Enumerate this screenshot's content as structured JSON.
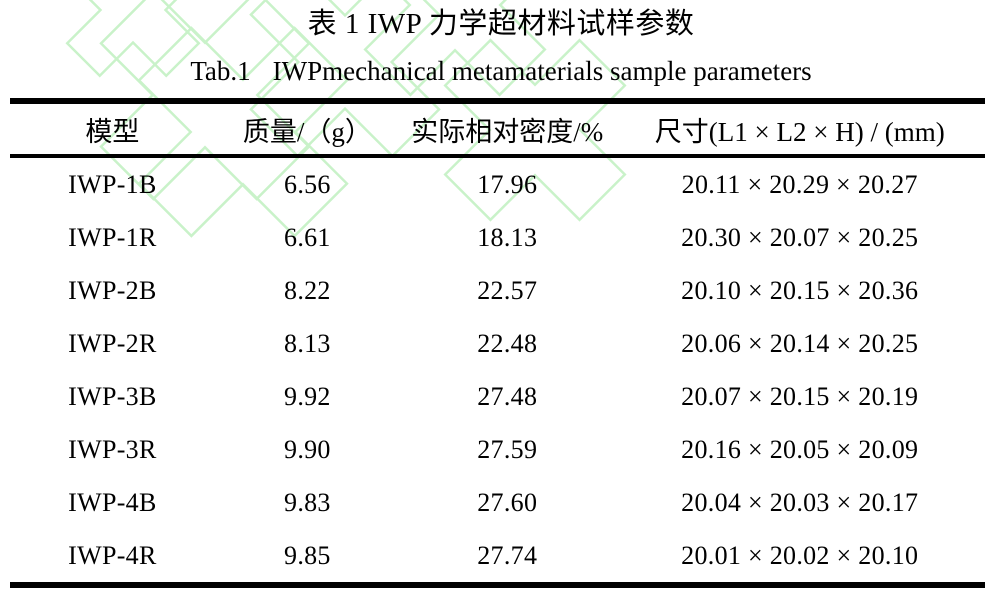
{
  "page": {
    "title_zh": "表 1 IWP 力学超材料试样参数",
    "title_en_label": "Tab.1",
    "title_en_text": "IWPmechanical metamaterials sample parameters",
    "background_color": "#ffffff",
    "text_color": "#000000"
  },
  "watermark": {
    "name": "light-green-rotated-cross-pattern",
    "color": "#c9f2c9"
  },
  "table": {
    "columns": [
      "模型",
      "质量/（g）",
      "实际相对密度/%",
      "尺寸(L1 × L2 × H) / (mm)"
    ],
    "rows": [
      {
        "model": "IWP-1B",
        "mass": "6.56",
        "relative_density": "17.96",
        "dimensions": "20.11 × 20.29 × 20.27"
      },
      {
        "model": "IWP-1R",
        "mass": "6.61",
        "relative_density": "18.13",
        "dimensions": "20.30 × 20.07 × 20.25"
      },
      {
        "model": "IWP-2B",
        "mass": "8.22",
        "relative_density": "22.57",
        "dimensions": "20.10 × 20.15 × 20.36"
      },
      {
        "model": "IWP-2R",
        "mass": "8.13",
        "relative_density": "22.48",
        "dimensions": "20.06 × 20.14 × 20.25"
      },
      {
        "model": "IWP-3B",
        "mass": "9.92",
        "relative_density": "27.48",
        "dimensions": "20.07 × 20.15 × 20.19"
      },
      {
        "model": "IWP-3R",
        "mass": "9.90",
        "relative_density": "27.59",
        "dimensions": "20.16 × 20.05 × 20.09"
      },
      {
        "model": "IWP-4B",
        "mass": "9.83",
        "relative_density": "27.60",
        "dimensions": "20.04 × 20.03 × 20.17"
      },
      {
        "model": "IWP-4R",
        "mass": "9.85",
        "relative_density": "27.74",
        "dimensions": "20.01 × 20.02 × 20.10"
      }
    ]
  }
}
